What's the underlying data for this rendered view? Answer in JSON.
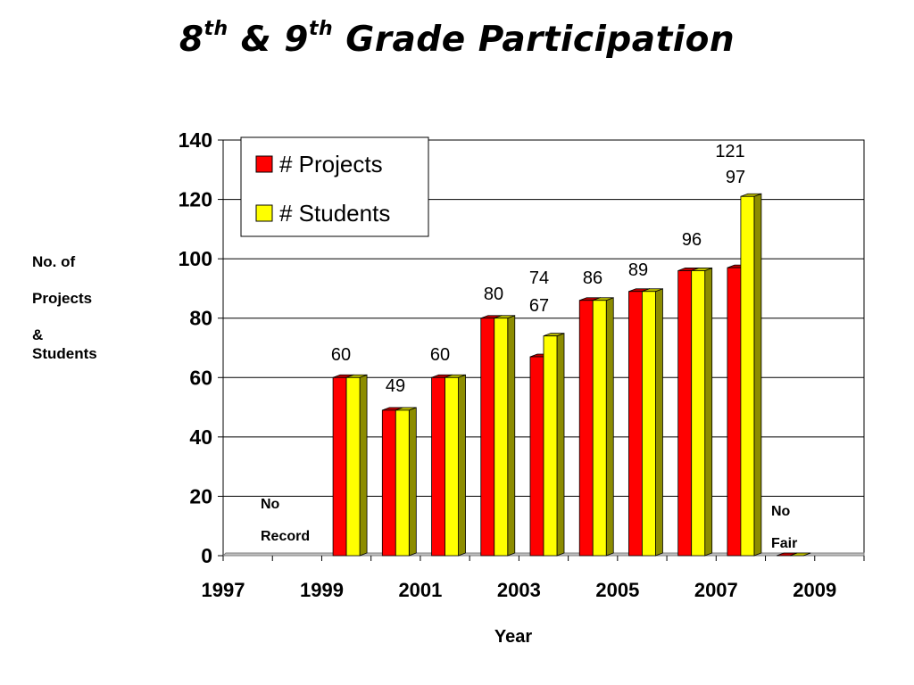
{
  "chart_data": {
    "type": "bar",
    "title_parts": [
      "8",
      "th",
      " & 9",
      "th",
      " Grade Participation"
    ],
    "xlabel": "Year",
    "ylabel_lines": [
      "No. of",
      "Projects",
      "&",
      "Students"
    ],
    "ylim": [
      0,
      140
    ],
    "y_ticks": [
      0,
      20,
      40,
      60,
      80,
      100,
      120,
      140
    ],
    "x_tick_labels": [
      "1997",
      "1999",
      "2001",
      "2003",
      "2005",
      "2007",
      "2009"
    ],
    "x": [
      1997,
      1998,
      1999,
      2000,
      2001,
      2002,
      2003,
      2004,
      2005,
      2006,
      2007,
      2008,
      2009
    ],
    "grid": true,
    "legend_position": "top-left",
    "series": [
      {
        "name": "# Projects",
        "color": "#FF0000",
        "values": [
          null,
          null,
          60,
          49,
          60,
          80,
          67,
          86,
          89,
          96,
          97,
          0,
          null
        ]
      },
      {
        "name": "# Students",
        "color": "#FFFF00",
        "values": [
          null,
          null,
          60,
          49,
          60,
          80,
          74,
          86,
          89,
          96,
          121,
          0,
          null
        ]
      }
    ],
    "data_labels": [
      {
        "text": "60",
        "year": 1999,
        "value": 60
      },
      {
        "text": "49",
        "year": 2000,
        "value": 49
      },
      {
        "text": "60",
        "year": 2001,
        "value": 60
      },
      {
        "text": "80",
        "year": 2002,
        "value": 80
      },
      {
        "text": "74",
        "year": 2003,
        "value": 74
      },
      {
        "text": "67",
        "year": 2003,
        "value": 67
      },
      {
        "text": "86",
        "year": 2004,
        "value": 86
      },
      {
        "text": "89",
        "year": 2005,
        "value": 89
      },
      {
        "text": "96",
        "year": 2006,
        "value": 96
      },
      {
        "text": "121",
        "year": 2007,
        "value": 121
      },
      {
        "text": "97",
        "year": 2007,
        "value": 97
      }
    ],
    "notes": [
      {
        "lines": [
          "No",
          "Record"
        ],
        "year": 1997
      },
      {
        "lines": [
          "No",
          "Fair"
        ],
        "year": 2008
      }
    ]
  }
}
